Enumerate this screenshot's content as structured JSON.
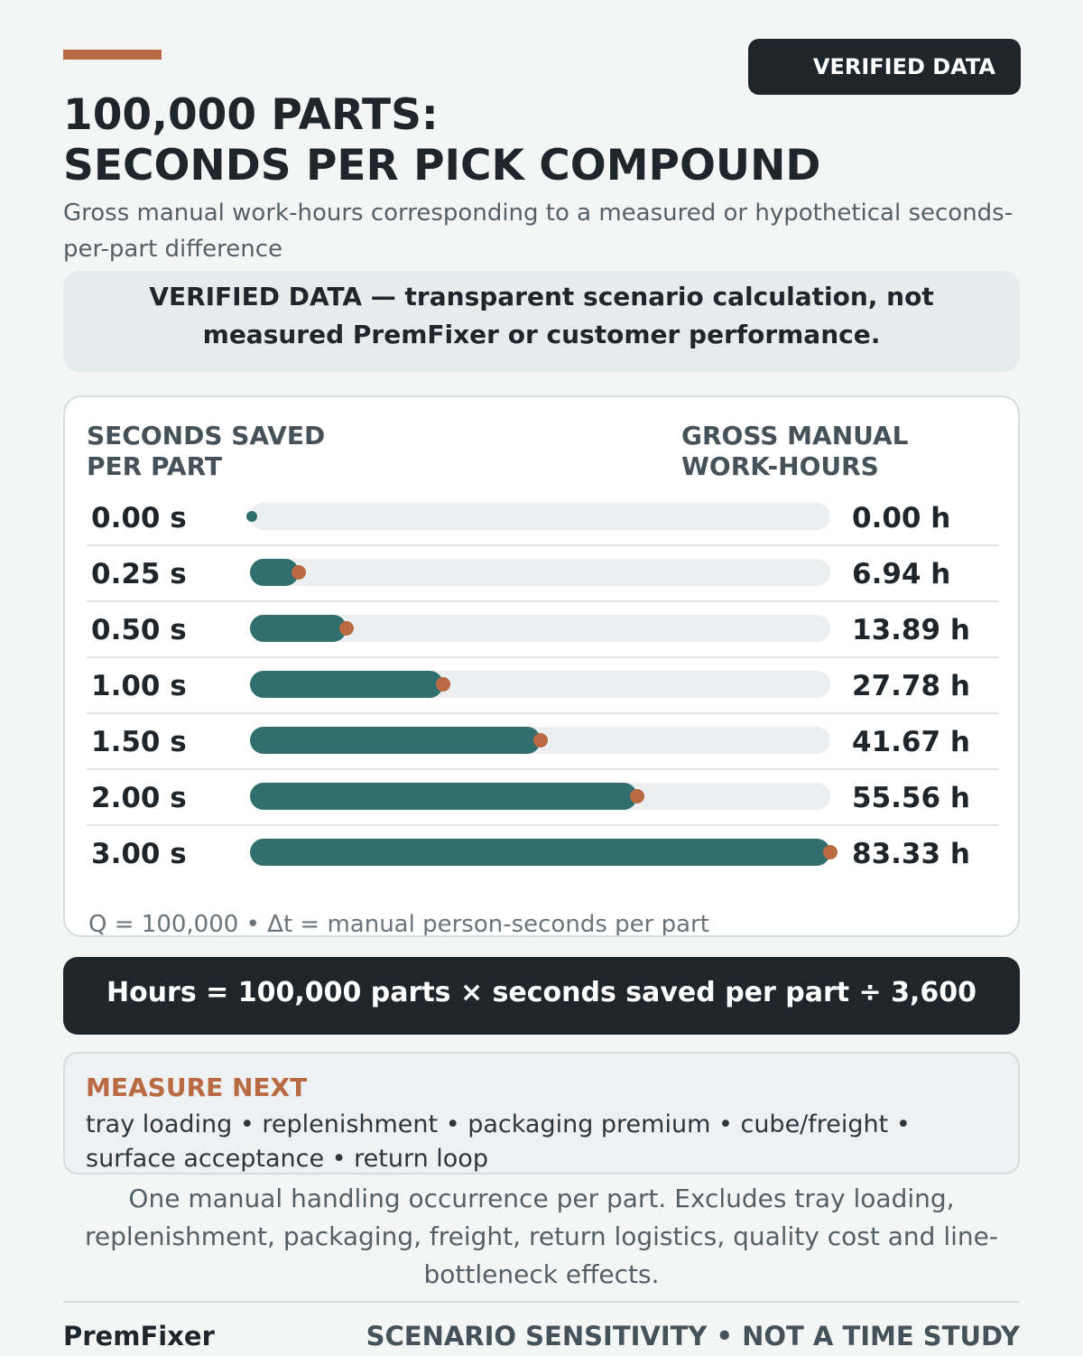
{
  "badge": "VERIFIED DATA",
  "title_line1": "100,000 PARTS:",
  "title_line2": "SECONDS PER PICK COMPOUND",
  "subtitle": "Gross manual work-hours corresponding to a measured or hypothetical seconds-per-part difference",
  "notice": "VERIFIED DATA — transparent scenario calculation, not measured PremFixer or customer performance.",
  "colors": {
    "accent": "#b96a43",
    "bar_fill": "#316f6e",
    "bar_track": "#eceeef",
    "dark": "#1e262c"
  },
  "chart_data": {
    "type": "bar",
    "orientation": "horizontal",
    "column_headers": {
      "left_line1": "SECONDS SAVED",
      "left_line2": "PER PART",
      "right_line1": "GROSS MANUAL",
      "right_line2": "WORK-HOURS"
    },
    "categories": [
      "0.00 s",
      "0.25 s",
      "0.50 s",
      "1.00 s",
      "1.50 s",
      "2.00 s",
      "3.00 s"
    ],
    "seconds": [
      0,
      0.25,
      0.5,
      1.0,
      1.5,
      2.0,
      3.0
    ],
    "values": [
      0,
      6.94,
      13.89,
      27.78,
      41.67,
      55.56,
      83.33
    ],
    "value_labels": [
      "0.00 h",
      "6.94 h",
      "13.89 h",
      "27.78 h",
      "41.67 h",
      "55.56 h",
      "83.33 h"
    ],
    "xlim": [
      0,
      83.33
    ],
    "footnote": "Q = 100,000 • Δt = manual person-seconds per part"
  },
  "formula": "Hours = 100,000 parts × seconds saved per part ÷ 3,600",
  "measure_next": {
    "title": "MEASURE NEXT",
    "items": "tray loading • replenishment • packaging premium • cube/freight • surface acceptance • return loop"
  },
  "disclaimer": "One manual handling occurrence per part. Excludes tray loading, replenishment, packaging, freight, return logistics, quality cost and line-bottleneck effects.",
  "footer": {
    "brand": "PremFixer",
    "tag": "SCENARIO SENSITIVITY • NOT A TIME STUDY"
  }
}
